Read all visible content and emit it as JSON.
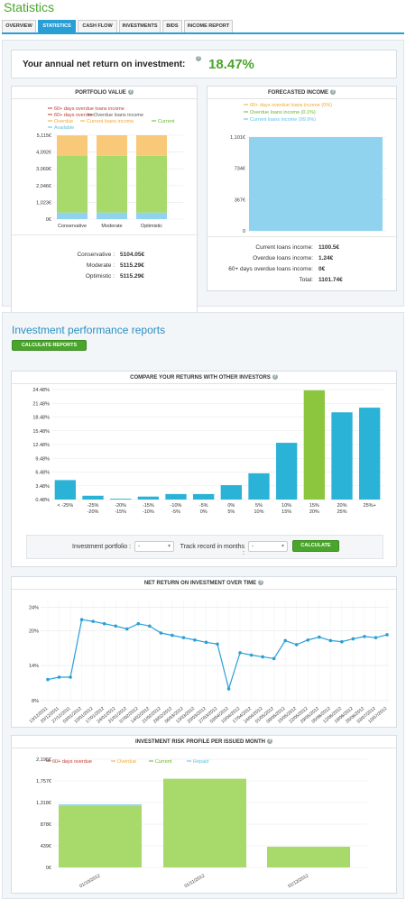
{
  "page_title": "Statistics",
  "tabs": [
    "OVERVIEW",
    "STATISTICS",
    "CASH FLOW",
    "INVESTMENTS",
    "BIDS",
    "INCOME REPORT"
  ],
  "active_tab": 1,
  "annual": {
    "label": "Your annual net return on investment:",
    "value": "18.47%"
  },
  "portfolio": {
    "title": "PORTFOLIO VALUE",
    "legend": [
      {
        "label": "60+ days overdue loans income",
        "color": "#c0392b"
      },
      {
        "label": "60+ days overdue",
        "color": "#c0392b"
      },
      {
        "label": "Overdue loans income",
        "color": "#555555"
      },
      {
        "label": "Overdue",
        "color": "#f0a830"
      },
      {
        "label": "Current loans income",
        "color": "#f0a830"
      },
      {
        "label": "Current",
        "color": "#6ab42d"
      },
      {
        "label": "Available",
        "color": "#5bc0de"
      }
    ],
    "rows": [
      {
        "label": "Conservative :",
        "value": "5104.05€"
      },
      {
        "label": "Moderate :",
        "value": "5115.29€"
      },
      {
        "label": "Optimistic :",
        "value": "5115.29€"
      }
    ]
  },
  "forecast": {
    "title": "FORECASTED INCOME",
    "legend": [
      {
        "label": "60+ days overdue loans income (0%)",
        "color": "#f0a830"
      },
      {
        "label": "Overdue loans income (0.1%)",
        "color": "#6ab42d"
      },
      {
        "label": "Current loans income (99.9%)",
        "color": "#5bc0de"
      }
    ],
    "rows": [
      {
        "label": "Current loans income:",
        "value": "1100.5€"
      },
      {
        "label": "Overdue loans income:",
        "value": "1.24€"
      },
      {
        "label": "60+ days overdue loans income:",
        "value": "0€"
      },
      {
        "label": "Total:",
        "value": "1101.74€"
      }
    ]
  },
  "reports": {
    "title": "Investment performance reports",
    "button": "CALCULATE REPORTS"
  },
  "compare": {
    "title": "COMPARE YOUR RETURNS WITH OTHER INVESTORS",
    "filter_portfolio_label": "Investment portfolio :",
    "filter_portfolio_value": "-",
    "filter_track_label": "Track record in months :",
    "filter_track_value": "-",
    "button": "CALCULATE"
  },
  "net_title": "NET RETURN ON INVESTMENT OVER TIME",
  "risk": {
    "title": "INVESTMENT RISK PROFILE PER ISSUED MONTH",
    "legend": [
      {
        "label": "60+ days overdue",
        "color": "#c0392b"
      },
      {
        "label": "Overdue",
        "color": "#f0a830"
      },
      {
        "label": "Current",
        "color": "#6ab42d"
      },
      {
        "label": "Repaid",
        "color": "#5bc0de"
      }
    ]
  },
  "chart_data": [
    {
      "type": "bar",
      "stacked": true,
      "categories": [
        "Conservative",
        "Moderate",
        "Optimistic"
      ],
      "yticks": [
        "0€",
        "1,023€",
        "2,046€",
        "3,069€",
        "4,092€",
        "5,115€"
      ],
      "ylim": [
        0,
        5115
      ],
      "series": [
        {
          "name": "Available",
          "color": "#8fd3ef",
          "values": [
            400,
            400,
            400
          ]
        },
        {
          "name": "Current",
          "color": "#a8d96b",
          "values": [
            3450,
            3460,
            3460
          ]
        },
        {
          "name": "Overdue",
          "color": "#f7c978",
          "values": [
            1254,
            1255,
            1255
          ]
        }
      ]
    },
    {
      "type": "bar",
      "categories": [
        ""
      ],
      "yticks": [
        "0",
        "367€",
        "734€",
        "1,101€"
      ],
      "ylim": [
        0,
        1101
      ],
      "values": [
        1100.5
      ],
      "color": "#8fd3ef"
    },
    {
      "type": "bar",
      "categories": [
        "< -25%",
        "-25%\n-20%",
        "-20%\n-15%",
        "-15%\n-10%",
        "-10%\n-5%",
        "-5%\n0%",
        "0%\n5%",
        "5%\n10%",
        "10%\n15%",
        "15%\n20%",
        "20%\n25%",
        "25%+"
      ],
      "yticks": [
        "0.48%",
        "3.48%",
        "6.48%",
        "9.48%",
        "12.48%",
        "15.48%",
        "18.48%",
        "21.48%",
        "24.48%"
      ],
      "ylim": [
        0,
        25.98
      ],
      "values": [
        4.6,
        0.9,
        0.2,
        0.7,
        1.3,
        1.3,
        3.4,
        6.2,
        13.4,
        25.8,
        20.6,
        21.7
      ],
      "highlight": 9
    },
    {
      "type": "line",
      "yticks": [
        "8%",
        "14%",
        "20%",
        "24%"
      ],
      "ylim": [
        7.5,
        25.5
      ],
      "x": [
        "13/12/2011",
        "20/12/2011",
        "27/12/2011",
        "03/01/2012",
        "10/01/2012",
        "17/01/2012",
        "24/01/2012",
        "31/01/2012",
        "07/02/2012",
        "14/02/2012",
        "21/02/2012",
        "28/02/2012",
        "06/03/2012",
        "13/03/2012",
        "20/03/2012",
        "27/03/2012",
        "03/04/2012",
        "10/04/2012",
        "17/04/2012",
        "24/04/2012",
        "01/05/2012",
        "08/05/2012",
        "15/05/2012",
        "22/05/2012",
        "29/05/2012",
        "05/06/2012",
        "12/06/2012",
        "19/06/2012",
        "26/06/2012",
        "03/07/2012",
        "10/07/2012"
      ],
      "values": [
        11.6,
        12.0,
        12.0,
        21.9,
        21.6,
        21.2,
        20.8,
        20.3,
        21.2,
        20.8,
        19.6,
        19.2,
        18.8,
        18.4,
        18.0,
        17.7,
        10.0,
        16.2,
        15.8,
        15.5,
        15.2,
        18.3,
        17.6,
        18.4,
        18.9,
        18.3,
        18.1,
        18.6,
        19.0,
        18.8,
        19.3
      ]
    },
    {
      "type": "bar",
      "stacked": true,
      "categories": [
        "01/10/2012",
        "01/11/2012",
        "01/12/2012"
      ],
      "yticks": [
        "0€",
        "439€",
        "878€",
        "1,318€",
        "1,757€",
        "2,196€"
      ],
      "ylim": [
        0,
        2196
      ],
      "series": [
        {
          "name": "Current",
          "color": "#a8d96b",
          "values": [
            1250,
            1800,
            420
          ]
        },
        {
          "name": "Repaid",
          "color": "#8fd3ef",
          "values": [
            30,
            0,
            0
          ]
        }
      ]
    }
  ]
}
